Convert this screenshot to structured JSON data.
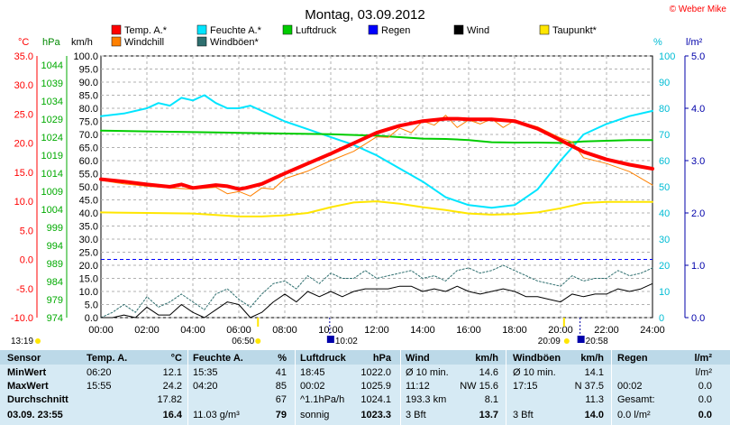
{
  "header": {
    "title": "Montag, 03.09.2012",
    "credit": "© Weber Mike"
  },
  "legend": [
    {
      "label": "Temp. A.*",
      "color": "#ff0000"
    },
    {
      "label": "Feuchte A.*",
      "color": "#00e5ff"
    },
    {
      "label": "Luftdruck",
      "color": "#00cc00"
    },
    {
      "label": "Regen",
      "color": "#0000ff"
    },
    {
      "label": "Wind",
      "color": "#000000"
    },
    {
      "label": "Taupunkt*",
      "color": "#ffe600"
    },
    {
      "label": "Windchill",
      "color": "#ff8000"
    },
    {
      "label": "Windböen*",
      "color": "#2f6f6f"
    }
  ],
  "axis_units": {
    "temp": "°C",
    "pressure": "hPa",
    "wind": "km/h",
    "humidity": "%",
    "rain": "l/m²"
  },
  "sun_events": {
    "sunrise_label": "06:50",
    "sunset_label": "20:09",
    "moonrise_label": "10:02",
    "moonset_label": "20:58",
    "left_time": "13:19"
  },
  "chart_data": {
    "type": "line",
    "x_unit": "hour",
    "xlim": [
      0,
      24
    ],
    "x_ticks": [
      "00:00",
      "02:00",
      "04:00",
      "06:00",
      "08:00",
      "10:00",
      "12:00",
      "14:00",
      "16:00",
      "18:00",
      "20:00",
      "22:00",
      "24:00"
    ],
    "axes": {
      "temp": {
        "range": [
          -10,
          35
        ],
        "ticks": [
          "35.0",
          "30.0",
          "25.0",
          "20.0",
          "15.0",
          "10.0",
          "5.0",
          "0.0",
          "-5.0",
          "-10.0"
        ]
      },
      "pressure": {
        "range": [
          974,
          1046.5
        ],
        "ticks": [
          "1044",
          "1039",
          "1034",
          "1029",
          "1024",
          "1019",
          "1014",
          "1009",
          "1004",
          "999",
          "994",
          "989",
          "984",
          "979",
          "974"
        ]
      },
      "wind": {
        "range": [
          0,
          100
        ],
        "ticks": [
          "100.0",
          "95.0",
          "90.0",
          "85.0",
          "80.0",
          "75.0",
          "70.0",
          "65.0",
          "60.0",
          "55.0",
          "50.0",
          "45.0",
          "40.0",
          "35.0",
          "30.0",
          "25.0",
          "20.0",
          "15.0",
          "10.0",
          "5.0",
          "0.0"
        ]
      },
      "humidity": {
        "range": [
          0,
          100
        ],
        "ticks": [
          "100",
          "90",
          "80",
          "70",
          "60",
          "50",
          "40",
          "30",
          "20",
          "10",
          "0"
        ]
      },
      "rain": {
        "range": [
          0,
          5
        ],
        "ticks": [
          "5.0",
          "4.0",
          "3.0",
          "2.0",
          "1.0",
          "0.0"
        ]
      }
    },
    "series": [
      {
        "name": "Temp. A.*",
        "axis": "temp",
        "color": "#ff0000",
        "x": [
          0,
          1,
          2,
          3,
          3.5,
          4,
          5,
          5.5,
          6,
          6.3,
          7,
          8,
          9,
          10,
          11,
          12,
          13,
          14,
          15,
          15.5,
          16,
          17,
          18,
          19,
          20,
          21,
          22,
          23,
          24
        ],
        "y": [
          13.8,
          13.4,
          12.9,
          12.5,
          12.9,
          12.3,
          12.8,
          12.6,
          12.1,
          12.3,
          13.0,
          14.8,
          16.5,
          18.2,
          20.0,
          21.8,
          23.0,
          23.8,
          24.2,
          24.2,
          24.1,
          24.1,
          23.8,
          22.5,
          20.5,
          18.5,
          17.2,
          16.3,
          15.6
        ]
      },
      {
        "name": "Windchill",
        "axis": "temp",
        "color": "#ff8000",
        "x": [
          0,
          1,
          2,
          3,
          4,
          5,
          5.5,
          6,
          6.5,
          7,
          7.5,
          8,
          9,
          10,
          11,
          12,
          12.5,
          13,
          13.5,
          14,
          14.5,
          15,
          15.5,
          16,
          16.5,
          17,
          17.5,
          18,
          19,
          20,
          20.5,
          21,
          22,
          23,
          24
        ],
        "y": [
          13.6,
          13.0,
          12.6,
          12.3,
          12.1,
          12.4,
          11.3,
          11.7,
          10.9,
          12.3,
          12.1,
          13.9,
          15.2,
          17.0,
          18.6,
          21.1,
          21.0,
          22.6,
          21.8,
          23.8,
          23.1,
          24.8,
          22.7,
          24.0,
          23.3,
          24.2,
          22.7,
          23.9,
          22.8,
          20.9,
          20.2,
          17.5,
          16.5,
          15.1,
          12.8
        ]
      },
      {
        "name": "Feuchte A.*",
        "axis": "humidity",
        "color": "#00e5ff",
        "x": [
          0,
          1,
          2,
          2.5,
          3,
          3.5,
          4,
          4.5,
          5,
          5.5,
          6,
          6.5,
          7,
          8,
          9,
          10,
          11,
          12,
          13,
          14,
          15,
          16,
          17,
          18,
          19,
          20,
          21,
          22,
          23,
          24
        ],
        "y": [
          77,
          78,
          80,
          82,
          81,
          84,
          83,
          85,
          82,
          80,
          80,
          81,
          79,
          75,
          72,
          69,
          66,
          62,
          57,
          52,
          46,
          43,
          42,
          43,
          49,
          60,
          70,
          74,
          77,
          79
        ]
      },
      {
        "name": "Luftdruck",
        "axis": "pressure",
        "color": "#00cc00",
        "x": [
          0,
          2,
          4,
          6,
          8,
          10,
          12,
          13,
          14,
          15,
          16,
          17,
          18,
          19,
          20,
          21,
          22,
          23,
          24
        ],
        "y": [
          1025.8,
          1025.6,
          1025.4,
          1025.2,
          1025.0,
          1024.8,
          1024.4,
          1024.0,
          1023.6,
          1023.5,
          1023.2,
          1022.6,
          1022.5,
          1022.5,
          1022.4,
          1022.8,
          1023.0,
          1023.2,
          1023.2
        ]
      },
      {
        "name": "Taupunkt*",
        "axis": "temp",
        "color": "#ffe600",
        "x": [
          0,
          2,
          4,
          6,
          7,
          8,
          9,
          10,
          11,
          12,
          13,
          14,
          15,
          16,
          17,
          18,
          19,
          20,
          21,
          22,
          23,
          24
        ],
        "y": [
          8.1,
          8.0,
          7.9,
          7.4,
          7.4,
          7.6,
          8.0,
          9.0,
          9.8,
          10.0,
          9.6,
          9.0,
          8.5,
          7.9,
          7.7,
          7.8,
          8.1,
          8.8,
          9.7,
          9.9,
          9.9,
          9.9
        ]
      },
      {
        "name": "Windböen*",
        "axis": "wind",
        "color": "#2f6f6f",
        "x": [
          0,
          0.5,
          1,
          1.5,
          2,
          2.5,
          3,
          3.5,
          4,
          4.5,
          5,
          5.5,
          6,
          6.5,
          7,
          7.5,
          8,
          8.5,
          9,
          9.5,
          10,
          10.5,
          11,
          11.5,
          12,
          12.5,
          13,
          13.5,
          14,
          14.5,
          15,
          15.5,
          16,
          16.5,
          17,
          17.5,
          18,
          18.5,
          19,
          19.5,
          20,
          20.5,
          21,
          21.5,
          22,
          22.5,
          23,
          23.5,
          24
        ],
        "y": [
          0,
          2,
          5,
          2,
          8,
          4,
          6,
          9,
          6,
          3,
          9,
          11,
          7,
          4,
          9,
          13,
          14,
          11,
          16,
          13,
          17,
          15,
          15,
          18,
          15,
          16,
          17,
          18,
          15,
          16,
          14,
          18,
          19,
          17,
          18,
          20,
          18,
          16,
          14,
          13,
          12,
          16,
          14,
          15,
          15,
          18,
          16,
          17,
          19
        ]
      },
      {
        "name": "Wind",
        "axis": "wind",
        "color": "#000000",
        "x": [
          0,
          0.5,
          1,
          1.5,
          2,
          2.5,
          3,
          3.5,
          4,
          4.5,
          5,
          5.5,
          6,
          6.5,
          7,
          7.5,
          8,
          8.5,
          9,
          9.5,
          10,
          10.5,
          11,
          11.5,
          12,
          12.5,
          13,
          13.5,
          14,
          14.5,
          15,
          15.5,
          16,
          16.5,
          17,
          17.5,
          18,
          18.5,
          19,
          19.5,
          20,
          20.5,
          21,
          21.5,
          22,
          22.5,
          23,
          23.5,
          24
        ],
        "y": [
          0,
          0,
          1,
          0,
          4,
          1,
          1,
          5,
          2,
          0,
          3,
          6,
          5,
          0,
          2,
          6,
          9,
          6,
          10,
          8,
          10,
          8,
          10,
          11,
          11,
          11,
          12,
          12,
          10,
          11,
          10,
          12,
          10,
          9,
          10,
          11,
          10,
          8,
          8,
          7,
          6,
          9,
          8,
          9,
          9,
          11,
          10,
          11,
          13
        ]
      }
    ]
  },
  "stats": {
    "headers": [
      "Sensor",
      "Temp. A.",
      "°C",
      "Feuchte A.",
      "%",
      "Luftdruck",
      "hPa",
      "Wind",
      "km/h",
      "Windböen",
      "km/h",
      "Regen",
      "l/m²"
    ],
    "rows": {
      "min": {
        "label": "MinWert",
        "temp_time": "06:20",
        "temp": "12.1",
        "hum_time": "15:35",
        "hum": "41",
        "press_time": "18:45",
        "press": "1022.0",
        "wind_desc": "Ø 10 min.",
        "wind": "14.6",
        "gust_desc": "Ø 10 min.",
        "gust": "14.1",
        "rain_desc": "",
        "rain": "l/m²"
      },
      "max": {
        "label": "MaxWert",
        "temp_time": "15:55",
        "temp": "24.2",
        "hum_time": "04:20",
        "hum": "85",
        "press_time": "00:02",
        "press": "1025.9",
        "wind_desc": "11:12",
        "wind": "NW 15.6",
        "gust_desc": "17:15",
        "gust": "N 37.5",
        "rain_desc": "00:02",
        "rain": "0.0"
      },
      "avg": {
        "label": "Durchschnitt",
        "temp_time": "",
        "temp": "17.82",
        "hum_time": "",
        "hum": "67",
        "press_time": "^1.1hPa/h",
        "press": "1024.1",
        "wind_desc": "193.3 km",
        "wind": "8.1",
        "gust_desc": "",
        "gust": "11.3",
        "rain_desc": "Gesamt:",
        "rain": "0.0"
      },
      "now": {
        "label": "03.09. 23:55",
        "temp_time": "",
        "temp": "16.4",
        "hum_time": "11.03 g/m³",
        "hum": "79",
        "press_time": "sonnig",
        "press": "1023.3",
        "wind_desc": "3 Bft",
        "wind": "13.7",
        "gust_desc": "3 Bft",
        "gust": "14.0",
        "rain_desc": "0.0 l/m²",
        "rain": "0.0"
      }
    }
  }
}
